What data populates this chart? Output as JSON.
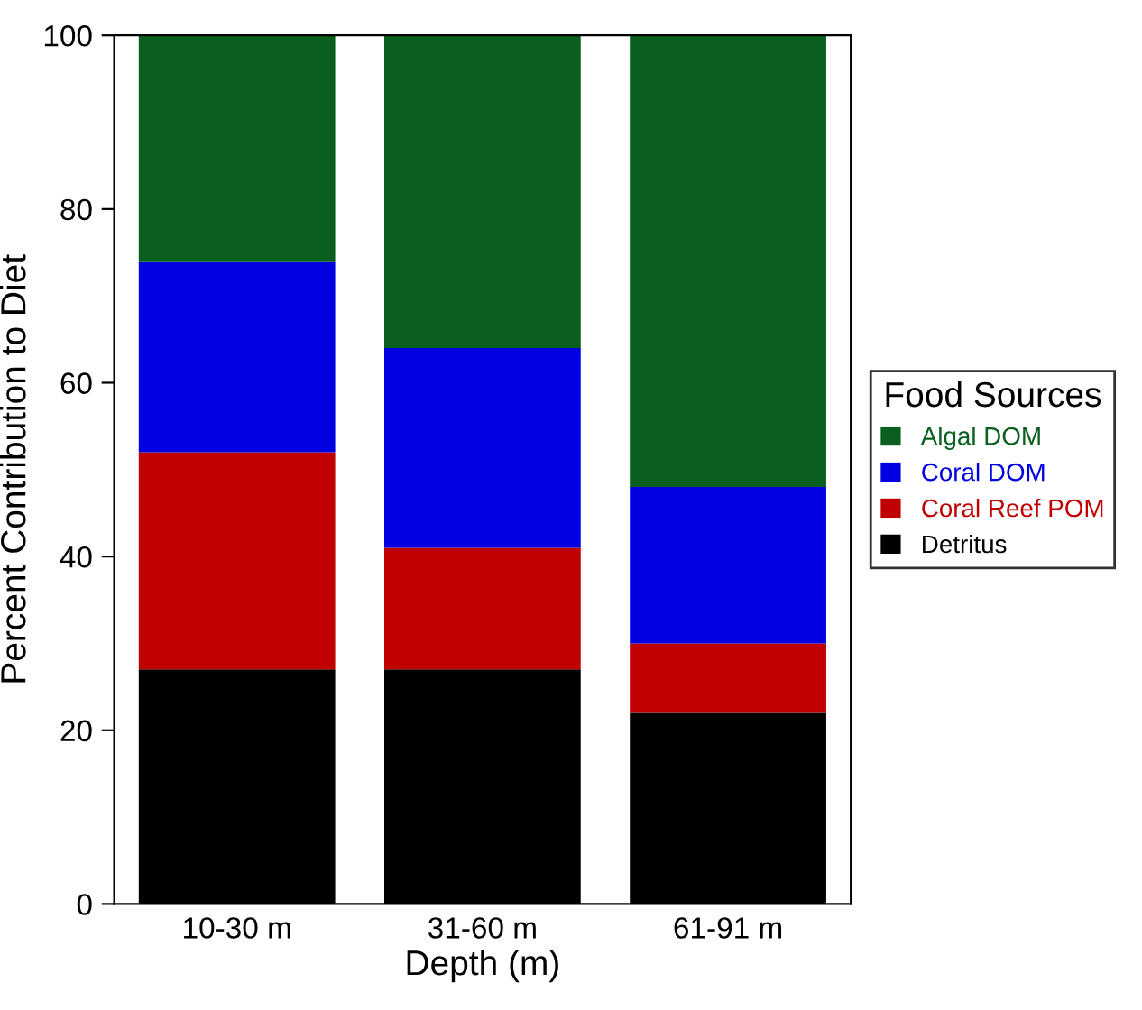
{
  "chart_data": {
    "type": "bar",
    "stacked": true,
    "xlabel": "Depth (m)",
    "ylabel": "Percent Contribution to Diet",
    "legend_title": "Food Sources",
    "legend": "right",
    "categories": [
      "10-30 m",
      "31-60 m",
      "61-91 m"
    ],
    "series": [
      {
        "name": "Detritus",
        "color": "#000000",
        "values": [
          27,
          27,
          22
        ]
      },
      {
        "name": "Coral Reef POM",
        "color": "#c00000",
        "values": [
          25,
          14,
          8
        ]
      },
      {
        "name": "Coral DOM",
        "color": "#0000e0",
        "values": [
          22,
          23,
          18
        ]
      },
      {
        "name": "Algal DOM",
        "color": "#0a5f1e",
        "values": [
          26,
          36,
          52
        ]
      }
    ],
    "ylim": [
      0,
      100
    ],
    "yticks": [
      0,
      20,
      40,
      60,
      80,
      100
    ]
  }
}
